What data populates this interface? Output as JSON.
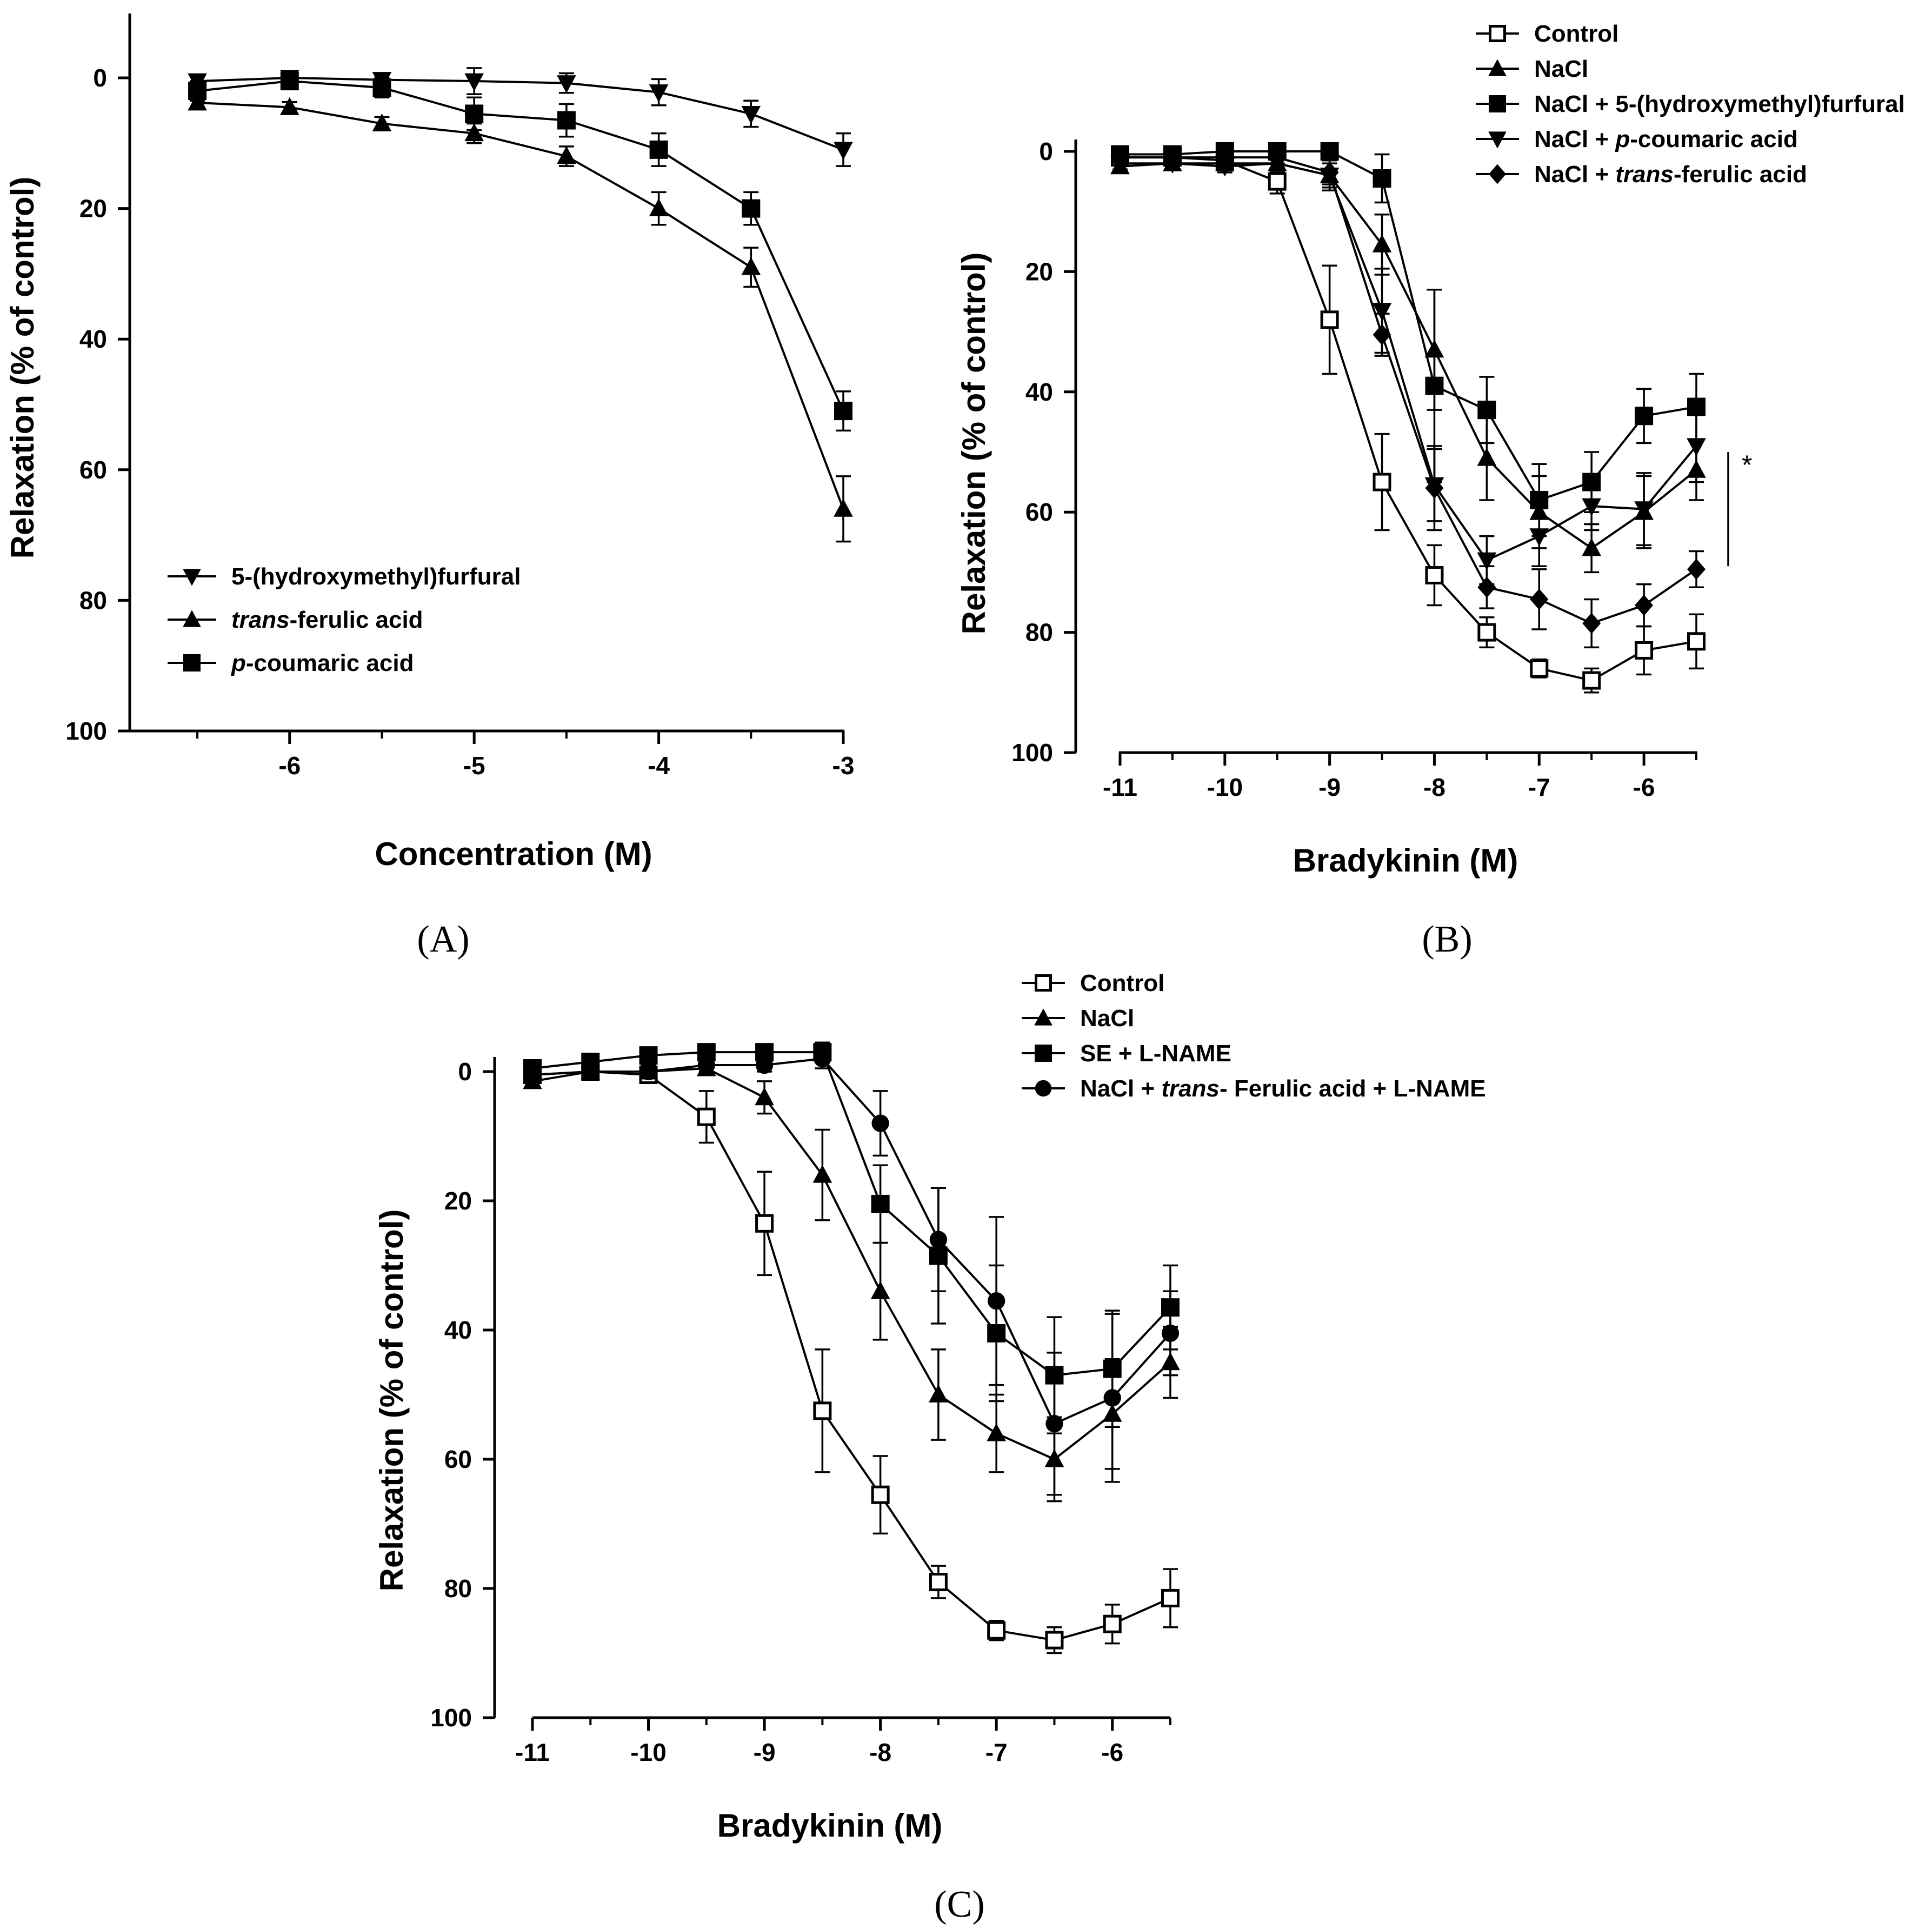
{
  "chart_data": [
    {
      "panel": "A",
      "type": "line",
      "panel_label": "(A)",
      "xlabel": "Concentration (M)",
      "ylabel": "Relaxation (% of control)",
      "xlim": [
        -6.55,
        -3
      ],
      "ylim": [
        100,
        -10
      ],
      "x_ticks": [
        -6,
        -5,
        -4,
        -3
      ],
      "y_ticks": [
        0,
        20,
        40,
        60,
        80,
        100
      ],
      "legend_position": "bottom-left",
      "series": [
        {
          "name": "5-(hydroxymethyl)furfural",
          "label_parts": [
            {
              "text": "5-(hydroxymethyl)furfural",
              "italic": false
            }
          ],
          "marker": "triangle-down",
          "x": [
            -6.5,
            -6,
            -5.5,
            -5,
            -4.5,
            -4,
            -3.5,
            -3
          ],
          "y": [
            0.5,
            0,
            0.3,
            0.5,
            0.8,
            2.2,
            5.5,
            11
          ],
          "err": [
            1,
            1,
            1,
            2,
            1.5,
            2,
            2,
            2.5
          ]
        },
        {
          "name": "trans-ferulic acid",
          "label_parts": [
            {
              "text": "trans",
              "italic": true
            },
            {
              "text": "-ferulic acid",
              "italic": false
            }
          ],
          "marker": "triangle-up",
          "x": [
            -6.5,
            -6,
            -5.5,
            -5,
            -4.5,
            -4,
            -3.5,
            -3
          ],
          "y": [
            3.8,
            4.5,
            7,
            8.5,
            12,
            20,
            29,
            66
          ],
          "err": [
            0.8,
            0.8,
            1,
            1.5,
            1.5,
            2.5,
            3,
            5
          ]
        },
        {
          "name": "p-coumaric acid",
          "label_parts": [
            {
              "text": "p",
              "italic": true
            },
            {
              "text": "-coumaric acid",
              "italic": false
            }
          ],
          "marker": "square",
          "x": [
            -6.5,
            -6,
            -5.5,
            -5,
            -4.5,
            -4,
            -3.5,
            -3
          ],
          "y": [
            2,
            0.5,
            1.5,
            5.5,
            6.5,
            11,
            20,
            51
          ],
          "err": [
            1.5,
            1,
            1.5,
            2.5,
            2.5,
            2.5,
            2.5,
            3
          ]
        }
      ]
    },
    {
      "panel": "B",
      "type": "line",
      "panel_label": "(B)",
      "xlabel": "Bradykinin (M)",
      "ylabel": "Relaxation (% of control)",
      "xlim": [
        -11,
        -5.5
      ],
      "ylim": [
        100,
        -3
      ],
      "x_ticks": [
        -11,
        -10,
        -9,
        -8,
        -7,
        -6
      ],
      "y_ticks": [
        0,
        20,
        40,
        60,
        80,
        100
      ],
      "legend_position": "top-right",
      "annotation": "*",
      "significance_bar_y": [
        50,
        69
      ],
      "series": [
        {
          "name": "Control",
          "label_parts": [
            {
              "text": "Control",
              "italic": false
            }
          ],
          "marker": "open-square",
          "x": [
            -11,
            -10.5,
            -10,
            -9.5,
            -9,
            -8.5,
            -8,
            -7.5,
            -7,
            -6.5,
            -6,
            -5.5
          ],
          "y": [
            1,
            1,
            1.5,
            5,
            28,
            55,
            70.5,
            80,
            86,
            88,
            83,
            81.5
          ],
          "err": [
            1,
            1,
            1,
            2,
            9,
            8,
            5,
            2.5,
            1.5,
            2,
            4,
            4.5
          ]
        },
        {
          "name": "NaCl",
          "label_parts": [
            {
              "text": "NaCl",
              "italic": false
            }
          ],
          "marker": "triangle-up",
          "x": [
            -11,
            -10.5,
            -10,
            -9.5,
            -9,
            -8.5,
            -8,
            -7.5,
            -7,
            -6.5,
            -6,
            -5.5
          ],
          "y": [
            2.5,
            2,
            2,
            2,
            4,
            15.5,
            33,
            51,
            60,
            66,
            60,
            53
          ],
          "err": [
            1,
            1,
            1,
            1.5,
            2.5,
            5,
            10,
            7,
            6,
            4,
            6,
            5
          ]
        },
        {
          "name": "NaCl + 5-(hydroxymethyl)furfural",
          "label_parts": [
            {
              "text": "NaCl + 5-(hydroxymethyl)furfural",
              "italic": false
            }
          ],
          "marker": "square",
          "x": [
            -11,
            -10.5,
            -10,
            -9.5,
            -9,
            -8.5,
            -8,
            -7.5,
            -7,
            -6.5,
            -6,
            -5.5
          ],
          "y": [
            0.5,
            0.5,
            0,
            0,
            0,
            4.5,
            39,
            43,
            58,
            55,
            44,
            42.5
          ],
          "err": [
            0.5,
            0.5,
            0.5,
            0.5,
            0.5,
            4,
            16,
            5.5,
            6,
            5,
            4.5,
            5.5
          ]
        },
        {
          "name": "NaCl + p-coumaric acid",
          "label_parts": [
            {
              "text": "NaCl + ",
              "italic": false
            },
            {
              "text": "p",
              "italic": true
            },
            {
              "text": "-coumaric acid",
              "italic": false
            }
          ],
          "marker": "triangle-down",
          "x": [
            -11,
            -10.5,
            -10,
            -9.5,
            -9,
            -8.5,
            -8,
            -7.5,
            -7,
            -6.5,
            -6,
            -5.5
          ],
          "y": [
            2,
            2,
            2.5,
            2,
            4,
            26.5,
            55.5,
            68,
            64,
            59,
            59.5,
            49
          ],
          "err": [
            1,
            1,
            1,
            1.5,
            2,
            7,
            6,
            4,
            5,
            4,
            6,
            6
          ]
        },
        {
          "name": "NaCl + trans-ferulic acid",
          "label_parts": [
            {
              "text": "NaCl + ",
              "italic": false
            },
            {
              "text": "trans",
              "italic": true
            },
            {
              "text": "-ferulic acid",
              "italic": false
            }
          ],
          "marker": "diamond",
          "x": [
            -11,
            -10.5,
            -10,
            -9.5,
            -9,
            -8.5,
            -8,
            -7.5,
            -7,
            -6.5,
            -6,
            -5.5
          ],
          "y": [
            1,
            1,
            1,
            1,
            3.5,
            30.5,
            56,
            72.5,
            74.5,
            78.5,
            75.5,
            69.5
          ],
          "err": [
            0.5,
            0.5,
            0.5,
            1,
            2,
            3.5,
            7,
            3.5,
            5,
            4,
            3.5,
            3
          ]
        }
      ]
    },
    {
      "panel": "C",
      "type": "line",
      "panel_label": "(C)",
      "xlabel": "Bradykinin (M)",
      "ylabel": "Relaxation (% of control)",
      "xlim": [
        -11,
        -5.5
      ],
      "ylim": [
        100,
        -3
      ],
      "x_ticks": [
        -11,
        -10,
        -9,
        -8,
        -7,
        -6
      ],
      "y_ticks": [
        0,
        20,
        40,
        60,
        80,
        100
      ],
      "legend_position": "top-right",
      "series": [
        {
          "name": "Control",
          "label_parts": [
            {
              "text": "Control",
              "italic": false
            }
          ],
          "marker": "open-square",
          "x": [
            -11,
            -10.5,
            -10,
            -9.5,
            -9,
            -8.5,
            -8,
            -7.5,
            -7,
            -6.5,
            -6,
            -5.5
          ],
          "y": [
            0.5,
            0,
            0.5,
            7,
            23.5,
            52.5,
            65.5,
            79,
            86.5,
            88,
            85.5,
            81.5
          ],
          "err": [
            1,
            1,
            1,
            4,
            8,
            9.5,
            6,
            2.5,
            1.5,
            2,
            3,
            4.5
          ]
        },
        {
          "name": "NaCl",
          "label_parts": [
            {
              "text": "NaCl",
              "italic": false
            }
          ],
          "marker": "triangle-up",
          "x": [
            -11,
            -10.5,
            -10,
            -9.5,
            -9,
            -8.5,
            -8,
            -7.5,
            -7,
            -6.5,
            -6,
            -5.5
          ],
          "y": [
            1.5,
            0,
            0,
            -0.5,
            4,
            16,
            34,
            50,
            56,
            60,
            53,
            45
          ],
          "err": [
            1,
            1,
            1,
            1,
            2.5,
            7,
            7.5,
            7,
            6,
            6.5,
            8.5,
            5.5
          ]
        },
        {
          "name": "SE + L-NAME",
          "label_parts": [
            {
              "text": "SE + L-NAME",
              "italic": false
            }
          ],
          "marker": "square",
          "x": [
            -11,
            -10.5,
            -10,
            -9.5,
            -9,
            -8.5,
            -8,
            -7.5,
            -7,
            -6.5,
            -6,
            -5.5
          ],
          "y": [
            -0.5,
            -1.5,
            -2.5,
            -3,
            -3,
            -3,
            20.5,
            28.5,
            40.5,
            47,
            46,
            36.5
          ],
          "err": [
            1,
            1,
            1,
            1,
            1,
            1.5,
            6,
            10.5,
            10.5,
            9,
            9,
            6.5
          ]
        },
        {
          "name": "NaCl + trans-Ferulic acid + L-NAME",
          "label_parts": [
            {
              "text": "NaCl + ",
              "italic": false
            },
            {
              "text": "trans",
              "italic": true
            },
            {
              "text": "- Ferulic acid + L-NAME",
              "italic": false
            }
          ],
          "marker": "circle",
          "x": [
            -11,
            -10.5,
            -10,
            -9.5,
            -9,
            -8.5,
            -8,
            -7.5,
            -7,
            -6.5,
            -6,
            -5.5
          ],
          "y": [
            0.5,
            0,
            0,
            -1,
            -1,
            -2,
            8,
            26,
            35.5,
            54.5,
            50.5,
            40.5
          ],
          "err": [
            1,
            1,
            1,
            1,
            1,
            1.5,
            5,
            8,
            13,
            11,
            13,
            6.5
          ]
        }
      ]
    }
  ]
}
